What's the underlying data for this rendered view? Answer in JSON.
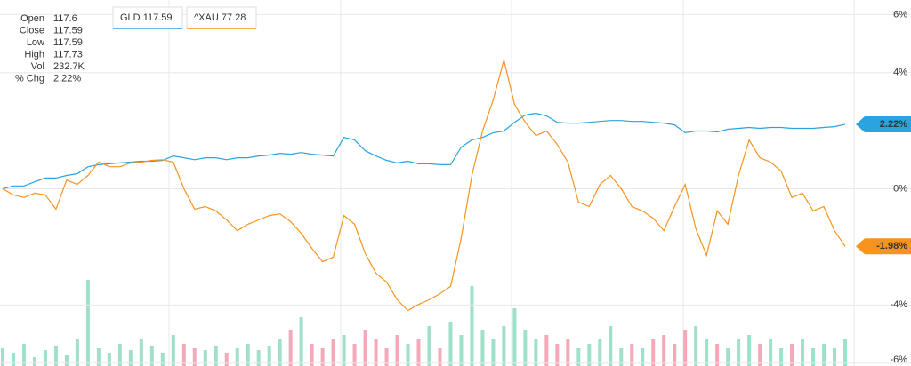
{
  "info": [
    {
      "label": "Open",
      "value": "117.6"
    },
    {
      "label": "Close",
      "value": "117.59"
    },
    {
      "label": "Low",
      "value": "117.59"
    },
    {
      "label": "High",
      "value": "117.73"
    },
    {
      "label": "Vol",
      "value": "232.7K"
    },
    {
      "label": "% Chg",
      "value": "2.22%"
    }
  ],
  "chart_data": {
    "type": "line",
    "ylim": [
      -6.1,
      6.5
    ],
    "yticks": [
      {
        "value": 6,
        "label": "6%"
      },
      {
        "value": 4,
        "label": "4%"
      },
      {
        "value": 0,
        "label": "0%"
      },
      {
        "value": -4,
        "label": "-4%"
      },
      {
        "value": -6,
        "label": "-6%"
      }
    ],
    "grid": true,
    "series": [
      {
        "name": "GLD",
        "legend_value": "117.59",
        "color": "#2ba3de",
        "last_label": "2.22%",
        "values": [
          0,
          0.1,
          0.1,
          0.24,
          0.37,
          0.37,
          0.46,
          0.52,
          0.76,
          0.83,
          0.86,
          0.89,
          0.92,
          0.95,
          0.95,
          0.98,
          1.13,
          1.07,
          1.0,
          1.07,
          1.07,
          1.0,
          1.07,
          1.07,
          1.13,
          1.16,
          1.22,
          1.19,
          1.25,
          1.19,
          1.16,
          1.13,
          1.77,
          1.68,
          1.31,
          1.13,
          0.98,
          0.89,
          0.95,
          0.86,
          0.86,
          0.83,
          0.83,
          1.44,
          1.68,
          1.77,
          1.93,
          1.99,
          2.29,
          2.54,
          2.6,
          2.51,
          2.29,
          2.26,
          2.26,
          2.29,
          2.32,
          2.35,
          2.35,
          2.32,
          2.32,
          2.29,
          2.26,
          2.2,
          1.93,
          1.99,
          1.99,
          1.96,
          2.05,
          2.08,
          2.11,
          2.08,
          2.11,
          2.11,
          2.08,
          2.08,
          2.08,
          2.11,
          2.14,
          2.22
        ]
      },
      {
        "name": "^XAU",
        "legend_value": "77.28",
        "color": "#f7931e",
        "last_label": "-1.98%",
        "values": [
          0,
          -0.21,
          -0.3,
          -0.15,
          -0.21,
          -0.7,
          0.3,
          0.15,
          0.46,
          0.92,
          0.76,
          0.76,
          0.89,
          0.92,
          0.98,
          1.0,
          0.92,
          0,
          -0.7,
          -0.61,
          -0.76,
          -1.07,
          -1.44,
          -1.22,
          -1.07,
          -0.92,
          -0.86,
          -1.13,
          -1.53,
          -2.05,
          -2.51,
          -2.35,
          -0.92,
          -1.22,
          -2.23,
          -2.9,
          -3.21,
          -3.82,
          -4.19,
          -3.98,
          -3.82,
          -3.61,
          -3.36,
          -1.68,
          0.46,
          1.99,
          3.06,
          4.43,
          2.9,
          2.29,
          1.83,
          1.99,
          1.53,
          0.92,
          -0.46,
          -0.61,
          0.15,
          0.46,
          0,
          -0.61,
          -0.76,
          -1.01,
          -1.44,
          -0.61,
          0.15,
          -1.38,
          -2.29,
          -0.76,
          -1.22,
          0.46,
          1.68,
          1.07,
          0.92,
          0.61,
          -0.3,
          -0.15,
          -0.76,
          -0.61,
          -1.44,
          -1.98
        ]
      }
    ],
    "volume": {
      "vlim": [
        0,
        412
      ],
      "up_color": "#9fe0c8",
      "down_color": "#f5a8b8",
      "values": [
        20,
        15,
        25,
        10,
        18,
        22,
        12,
        30,
        97,
        20,
        15,
        25,
        18,
        30,
        22,
        15,
        35,
        25,
        20,
        18,
        22,
        15,
        20,
        25,
        18,
        22,
        30,
        40,
        55,
        25,
        20,
        30,
        35,
        25,
        40,
        30,
        20,
        35,
        25,
        30,
        45,
        20,
        50,
        35,
        90,
        40,
        30,
        45,
        65,
        40,
        30,
        35,
        25,
        30,
        20,
        25,
        30,
        45,
        20,
        25,
        20,
        30,
        35,
        25,
        40,
        45,
        30,
        25,
        20,
        30,
        35,
        25,
        30,
        20,
        25,
        30,
        20,
        25,
        20,
        30
      ]
    }
  }
}
